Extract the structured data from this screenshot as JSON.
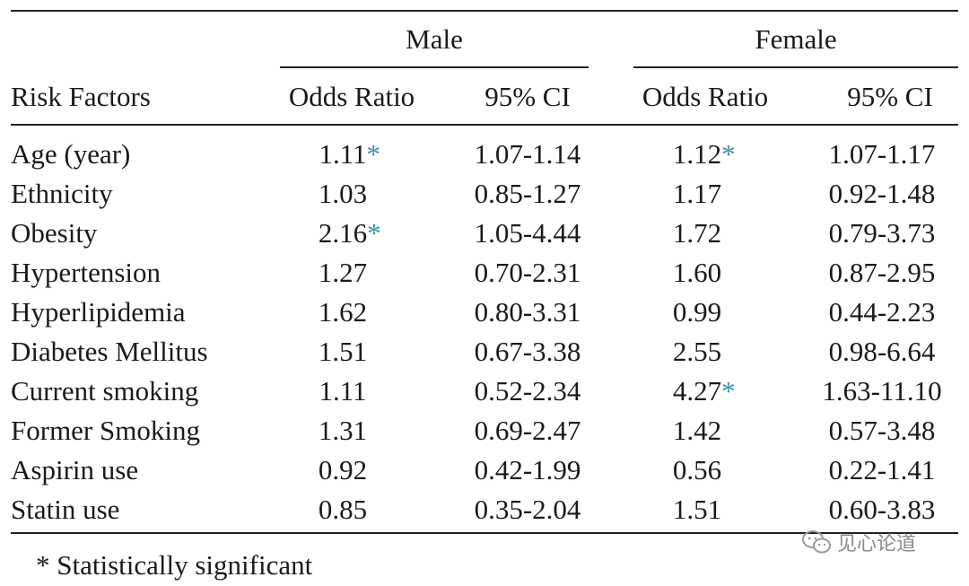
{
  "table": {
    "groups": {
      "male": "Male",
      "female": "Female"
    },
    "headers": {
      "risk_factors": "Risk Factors",
      "male_or": "Odds Ratio",
      "male_ci": "95% CI",
      "female_or": "Odds Ratio",
      "female_ci": "95% CI"
    },
    "rows": [
      {
        "factor": "Age (year)",
        "male_or": "1.11",
        "male_sig": "*",
        "male_ci": "1.07-1.14",
        "female_or": "1.12",
        "female_sig": "*",
        "female_ci": "1.07-1.17"
      },
      {
        "factor": "Ethnicity",
        "male_or": "1.03",
        "male_sig": "",
        "male_ci": "0.85-1.27",
        "female_or": "1.17",
        "female_sig": "",
        "female_ci": "0.92-1.48"
      },
      {
        "factor": "Obesity",
        "male_or": "2.16",
        "male_sig": "*",
        "male_ci": "1.05-4.44",
        "female_or": "1.72",
        "female_sig": "",
        "female_ci": "0.79-3.73"
      },
      {
        "factor": "Hypertension",
        "male_or": "1.27",
        "male_sig": "",
        "male_ci": "0.70-2.31",
        "female_or": "1.60",
        "female_sig": "",
        "female_ci": "0.87-2.95"
      },
      {
        "factor": "Hyperlipidemia",
        "male_or": "1.62",
        "male_sig": "",
        "male_ci": "0.80-3.31",
        "female_or": "0.99",
        "female_sig": "",
        "female_ci": "0.44-2.23"
      },
      {
        "factor": "Diabetes Mellitus",
        "male_or": "1.51",
        "male_sig": "",
        "male_ci": "0.67-3.38",
        "female_or": "2.55",
        "female_sig": "",
        "female_ci": "0.98-6.64"
      },
      {
        "factor": "Current smoking",
        "male_or": "1.11",
        "male_sig": "",
        "male_ci": "0.52-2.34",
        "female_or": "4.27",
        "female_sig": "*",
        "female_ci": "1.63-11.10"
      },
      {
        "factor": "Former Smoking",
        "male_or": "1.31",
        "male_sig": "",
        "male_ci": "0.69-2.47",
        "female_or": "1.42",
        "female_sig": "",
        "female_ci": "0.57-3.48"
      },
      {
        "factor": "Aspirin use",
        "male_or": "0.92",
        "male_sig": "",
        "male_ci": "0.42-1.99",
        "female_or": "0.56",
        "female_sig": "",
        "female_ci": "0.22-1.41"
      },
      {
        "factor": "Statin use",
        "male_or": "0.85",
        "male_sig": "",
        "male_ci": "0.35-2.04",
        "female_or": "1.51",
        "female_sig": "",
        "female_ci": "0.60-3.83"
      }
    ],
    "footnote": "* Statistically significant"
  },
  "watermark": {
    "text": "见心论道",
    "icon": "wechat-icon"
  }
}
